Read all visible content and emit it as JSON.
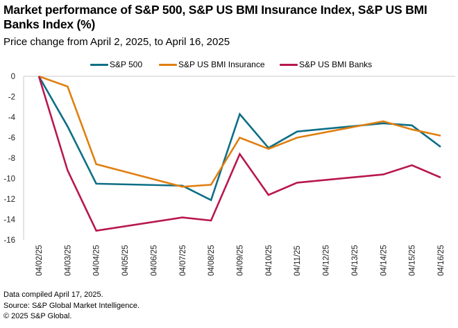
{
  "chart_data": {
    "type": "line",
    "title": "Market performance of S&P 500, S&P US BMI Insurance Index, S&P US BMI Banks Index (%)",
    "subtitle": "Price change from April 2, 2025, to April 16, 2025",
    "xlabel": "",
    "ylabel": "",
    "ylim": [
      -16,
      0
    ],
    "yticks": [
      0,
      -2,
      -4,
      -6,
      -8,
      -10,
      -12,
      -14,
      -16
    ],
    "ytick_labels": [
      "0",
      "-2",
      "-4",
      "-6",
      "-8",
      "-10",
      "-12",
      "-14",
      "-16"
    ],
    "grid": false,
    "legend_position": "top-center",
    "categories": [
      "04/02/25",
      "04/03/25",
      "04/04/25",
      "04/05/25",
      "04/06/25",
      "04/07/25",
      "04/08/25",
      "04/09/25",
      "04/10/25",
      "04/11/25",
      "04/12/25",
      "04/13/25",
      "04/14/25",
      "04/15/25",
      "04/16/25"
    ],
    "series": [
      {
        "name": "S&P 500",
        "color": "#0E6E86",
        "values": [
          0,
          -4.9,
          -10.5,
          null,
          null,
          -10.7,
          -12.1,
          -3.7,
          -7.0,
          -5.4,
          null,
          null,
          -4.6,
          -4.8,
          -6.9
        ]
      },
      {
        "name": "S&P US BMI Insurance",
        "color": "#E07F10",
        "values": [
          0,
          -1.0,
          -8.6,
          null,
          null,
          -10.8,
          -10.6,
          -6.0,
          -7.1,
          -6.0,
          null,
          null,
          -4.4,
          -5.2,
          -5.8
        ]
      },
      {
        "name": "S&P US BMI Banks",
        "color": "#B8174F",
        "values": [
          0,
          -9.2,
          -15.1,
          null,
          null,
          -13.8,
          -14.1,
          -7.6,
          -11.6,
          -10.4,
          null,
          null,
          -9.6,
          -8.7,
          -9.9
        ]
      }
    ],
    "connect_gaps": true
  },
  "footer": {
    "line1": "Data compiled April 17, 2025.",
    "line2": "Source: S&P Global Market Intelligence.",
    "line3": "© 2025 S&P Global."
  }
}
